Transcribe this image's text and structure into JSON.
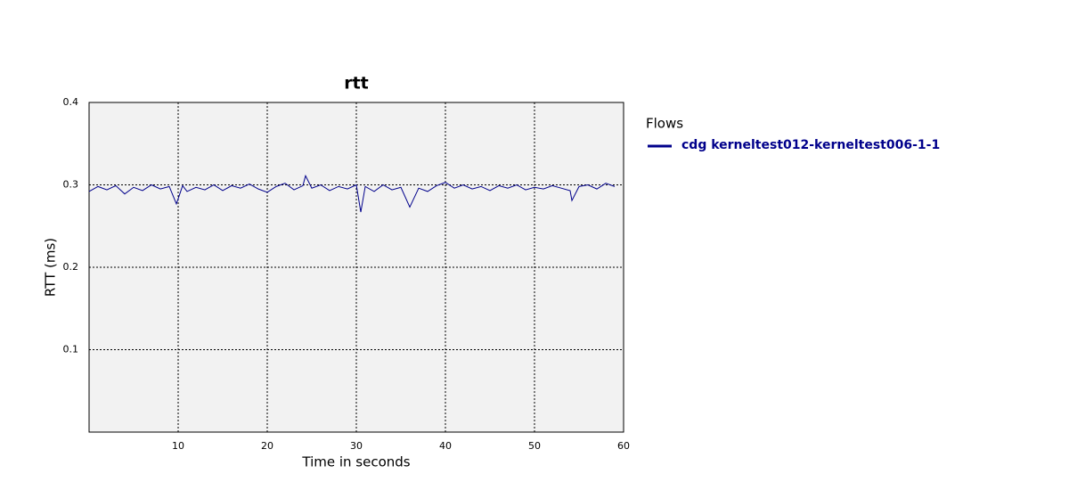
{
  "chart_data": {
    "type": "line",
    "title": "rtt",
    "x_label": "Time in seconds",
    "y_label": "RTT (ms)",
    "legend_title": "Flows",
    "legend_position": "right",
    "x": [
      0,
      1,
      2,
      3,
      4,
      5,
      6,
      7,
      8,
      9,
      9.8,
      10.5,
      11,
      12,
      13,
      14,
      15,
      16,
      17,
      18,
      19,
      20,
      21,
      22,
      23,
      24,
      24.3,
      25,
      26,
      27,
      28,
      29,
      30,
      30.5,
      31,
      32,
      33,
      34,
      35,
      36,
      37,
      38,
      39,
      40,
      41,
      42,
      43,
      44,
      45,
      46,
      47,
      48,
      49,
      50,
      51,
      52,
      53,
      54,
      54.2,
      55,
      56,
      57,
      58,
      59
    ],
    "series": [
      {
        "name": "cdg kerneltest012-kerneltest006-1-1",
        "color": "#00008b",
        "values": [
          0.292,
          0.298,
          0.294,
          0.299,
          0.289,
          0.297,
          0.293,
          0.3,
          0.295,
          0.298,
          0.277,
          0.299,
          0.292,
          0.297,
          0.294,
          0.3,
          0.293,
          0.299,
          0.296,
          0.301,
          0.295,
          0.291,
          0.298,
          0.302,
          0.294,
          0.299,
          0.311,
          0.296,
          0.3,
          0.293,
          0.298,
          0.295,
          0.3,
          0.267,
          0.298,
          0.292,
          0.3,
          0.294,
          0.297,
          0.273,
          0.296,
          0.292,
          0.299,
          0.303,
          0.296,
          0.3,
          0.295,
          0.298,
          0.293,
          0.299,
          0.296,
          0.3,
          0.294,
          0.297,
          0.295,
          0.299,
          0.296,
          0.293,
          0.281,
          0.298,
          0.3,
          0.295,
          0.302,
          0.298
        ]
      }
    ],
    "xlim": [
      0,
      60
    ],
    "xticks": [
      10,
      20,
      30,
      40,
      50,
      60
    ],
    "ylim": [
      0,
      0.4
    ],
    "yticks": [
      0.1,
      0.2,
      0.3,
      0.4
    ],
    "grid": true
  }
}
